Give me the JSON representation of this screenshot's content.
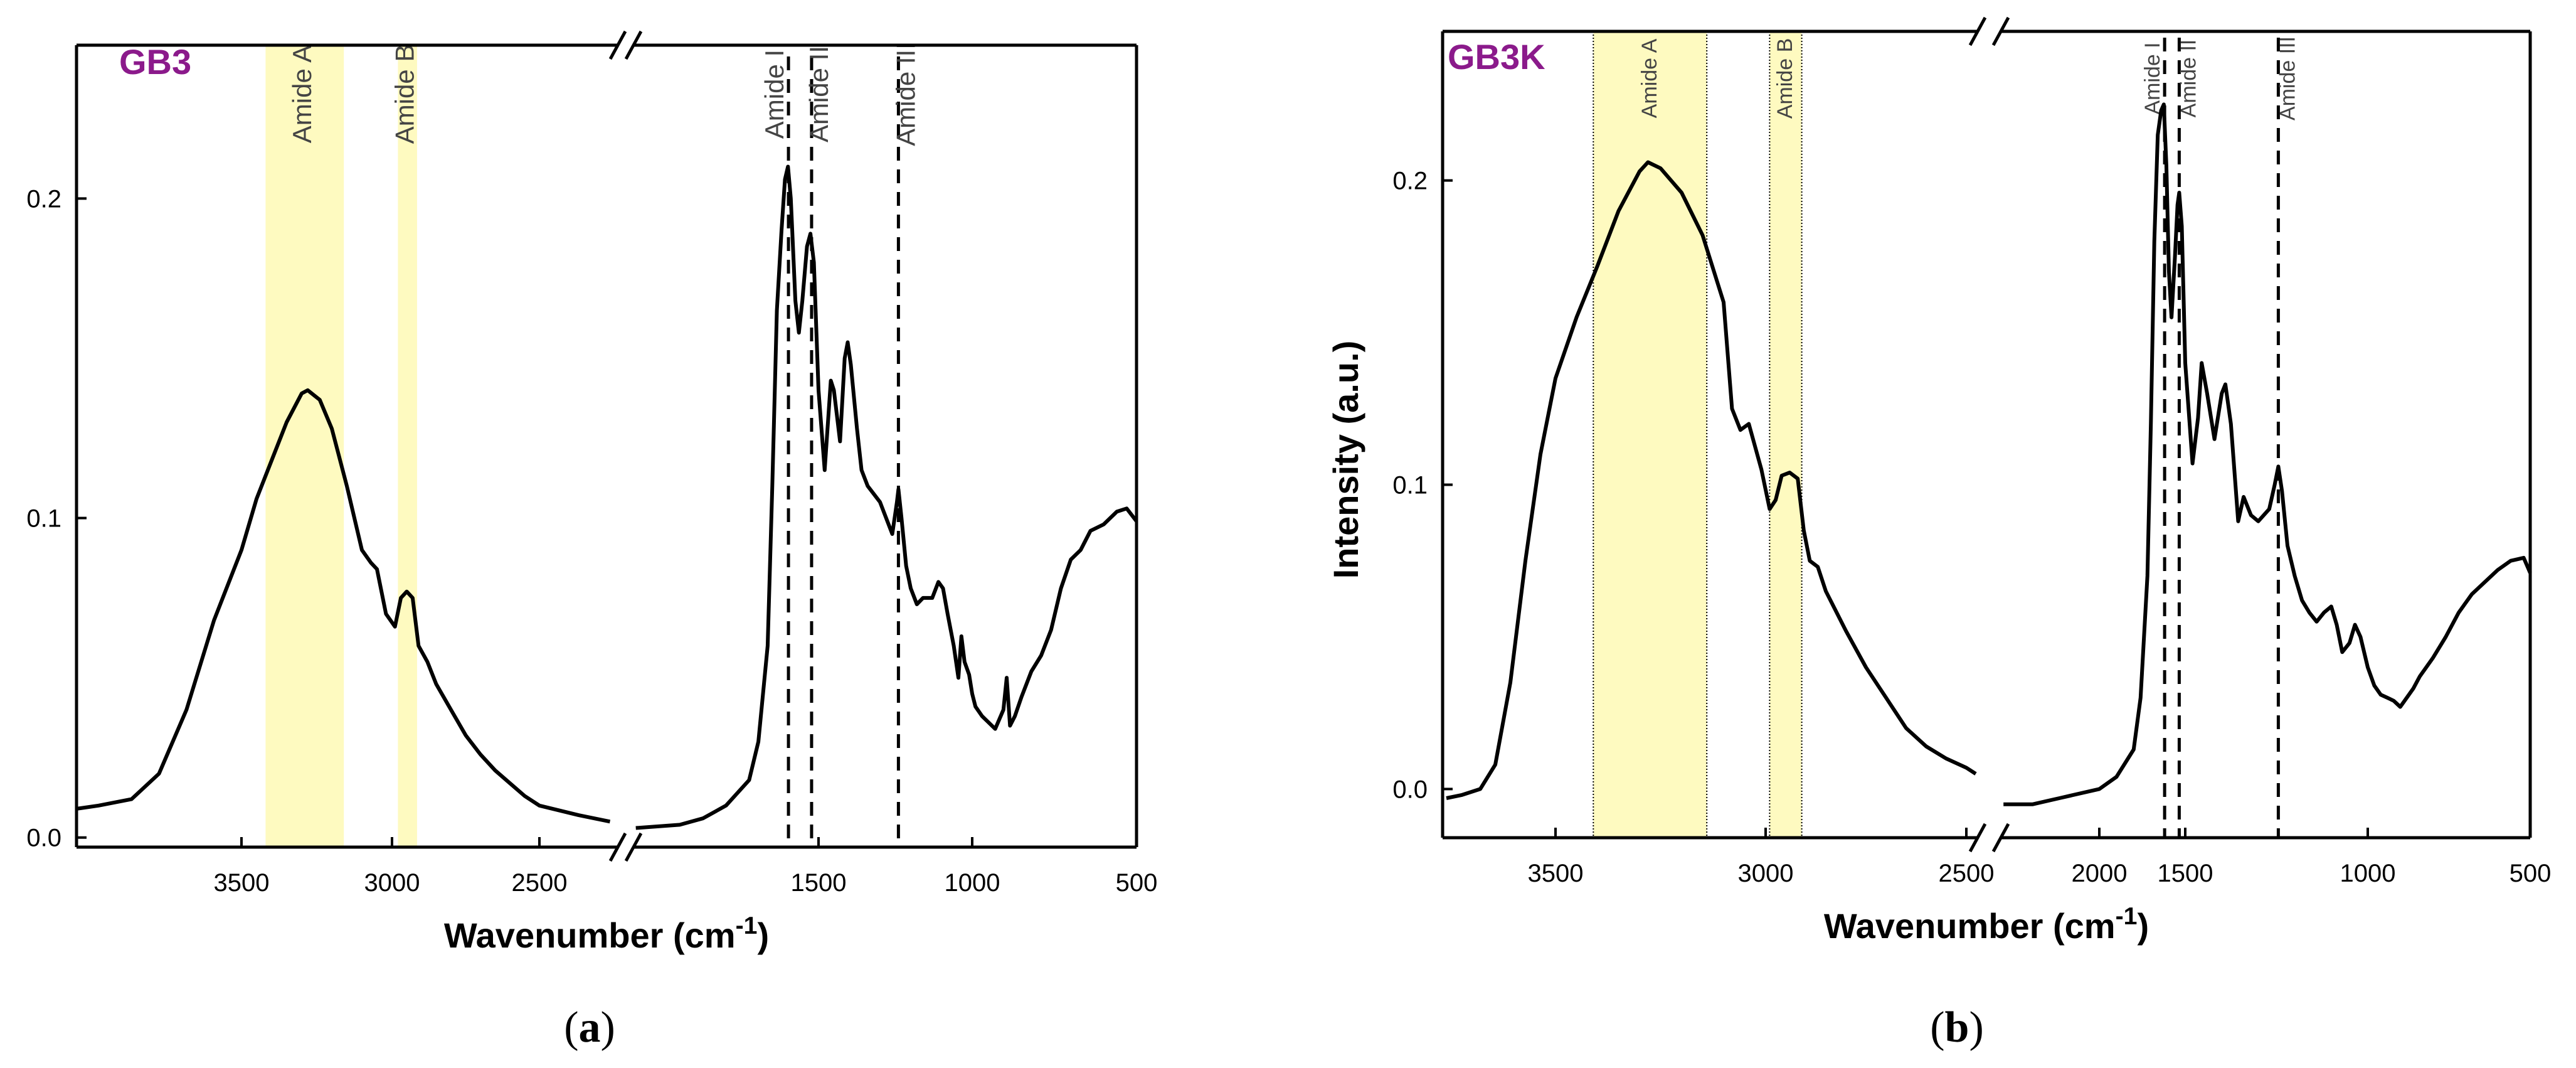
{
  "chart_data": [
    {
      "type": "line",
      "panel_label": "GB3",
      "xlabel": "Wavenumber (cm",
      "xlabel_sup": "-1",
      "xlabel_tail": ")",
      "ylabel": "Intensity (a.u.)",
      "caption_open": "(",
      "caption_letter": "a",
      "caption_close": ")",
      "xlim": [
        3800,
        500
      ],
      "x_break": [
        2400,
        2300
      ],
      "ylim": [
        -0.003,
        0.248
      ],
      "xticks": [
        "3500",
        "3000",
        "2500",
        "1500",
        "1000",
        "500"
      ],
      "yticks": [
        "0.0",
        "0.1",
        "0.2"
      ],
      "bands": [
        {
          "label": "Amide A",
          "from": 3420,
          "to": 3160
        },
        {
          "label": "Amide B",
          "from": 2980,
          "to": 2915
        }
      ],
      "lines": [
        {
          "label": "Amide I",
          "x": 1630
        },
        {
          "label": "Amide II",
          "x": 1530
        },
        {
          "label": "Amide III",
          "x": 1240
        }
      ],
      "series": [
        {
          "segments": [
            [
              [
                3800,
                0.009
              ],
              [
                3760,
                0.01
              ],
              [
                3700,
                0.012
              ],
              [
                3650,
                0.02
              ],
              [
                3600,
                0.04
              ],
              [
                3550,
                0.068
              ],
              [
                3500,
                0.09
              ],
              [
                3450,
                0.106
              ],
              [
                3400,
                0.118
              ],
              [
                3350,
                0.13
              ],
              [
                3300,
                0.139
              ],
              [
                3280,
                0.14
              ],
              [
                3240,
                0.137
              ],
              [
                3200,
                0.128
              ],
              [
                3150,
                0.11
              ],
              [
                3100,
                0.09
              ],
              [
                3070,
                0.086
              ],
              [
                3050,
                0.084
              ],
              [
                3020,
                0.07
              ],
              [
                2990,
                0.066
              ],
              [
                2970,
                0.075
              ],
              [
                2950,
                0.077
              ],
              [
                2930,
                0.075
              ],
              [
                2910,
                0.06
              ],
              [
                2880,
                0.055
              ],
              [
                2850,
                0.048
              ],
              [
                2800,
                0.04
              ],
              [
                2750,
                0.032
              ],
              [
                2700,
                0.026
              ],
              [
                2650,
                0.021
              ],
              [
                2600,
                0.017
              ],
              [
                2550,
                0.013
              ],
              [
                2500,
                0.01
              ],
              [
                2450,
                0.007
              ],
              [
                2410,
                0.005
              ]
            ],
            [
              [
                2290,
                0.003
              ],
              [
                2100,
                0.004
              ],
              [
                2000,
                0.006
              ],
              [
                1900,
                0.01
              ],
              [
                1800,
                0.018
              ],
              [
                1760,
                0.03
              ],
              [
                1720,
                0.06
              ],
              [
                1700,
                0.11
              ],
              [
                1680,
                0.165
              ],
              [
                1660,
                0.19
              ],
              [
                1645,
                0.206
              ],
              [
                1632,
                0.21
              ],
              [
                1620,
                0.2
              ],
              [
                1600,
                0.168
              ],
              [
                1585,
                0.158
              ],
              [
                1570,
                0.168
              ],
              [
                1550,
                0.185
              ],
              [
                1535,
                0.189
              ],
              [
                1520,
                0.18
              ],
              [
                1500,
                0.14
              ],
              [
                1480,
                0.115
              ],
              [
                1460,
                0.143
              ],
              [
                1450,
                0.14
              ],
              [
                1430,
                0.124
              ],
              [
                1415,
                0.15
              ],
              [
                1405,
                0.155
              ],
              [
                1395,
                0.148
              ],
              [
                1375,
                0.128
              ],
              [
                1360,
                0.115
              ],
              [
                1340,
                0.11
              ],
              [
                1300,
                0.105
              ],
              [
                1280,
                0.1
              ],
              [
                1260,
                0.095
              ],
              [
                1245,
                0.105
              ],
              [
                1240,
                0.109
              ],
              [
                1230,
                0.1
              ],
              [
                1215,
                0.085
              ],
              [
                1200,
                0.078
              ],
              [
                1180,
                0.073
              ],
              [
                1160,
                0.075
              ],
              [
                1130,
                0.075
              ],
              [
                1110,
                0.08
              ],
              [
                1095,
                0.078
              ],
              [
                1080,
                0.07
              ],
              [
                1060,
                0.06
              ],
              [
                1045,
                0.05
              ],
              [
                1035,
                0.063
              ],
              [
                1025,
                0.055
              ],
              [
                1010,
                0.051
              ],
              [
                1000,
                0.045
              ],
              [
                990,
                0.041
              ],
              [
                970,
                0.038
              ],
              [
                950,
                0.036
              ],
              [
                930,
                0.034
              ],
              [
                905,
                0.04
              ],
              [
                895,
                0.05
              ],
              [
                885,
                0.035
              ],
              [
                870,
                0.038
              ],
              [
                850,
                0.044
              ],
              [
                820,
                0.052
              ],
              [
                790,
                0.057
              ],
              [
                760,
                0.065
              ],
              [
                730,
                0.078
              ],
              [
                700,
                0.087
              ],
              [
                670,
                0.09
              ],
              [
                640,
                0.096
              ],
              [
                600,
                0.098
              ],
              [
                560,
                0.102
              ],
              [
                530,
                0.103
              ],
              [
                500,
                0.099
              ]
            ]
          ]
        }
      ]
    },
    {
      "type": "line",
      "panel_label": "GB3K",
      "xlabel": "Wavenumber (cm",
      "xlabel_sup": "-1",
      "xlabel_tail": ")",
      "ylabel": "Intensity (a.u.)",
      "caption_open": "(",
      "caption_letter": "b",
      "caption_close": ")",
      "xlim": [
        3800,
        500
      ],
      "x_break": [
        2440,
        2370
      ],
      "ylim": [
        -0.016,
        0.249
      ],
      "xticks": [
        "3500",
        "3000",
        "2500",
        "2000",
        "1500",
        "1000",
        "500"
      ],
      "yticks": [
        "0.0",
        "0.1",
        "0.2"
      ],
      "bands": [
        {
          "label": "Amide A",
          "from": 3410,
          "to": 3140
        },
        {
          "label": "Amide B",
          "from": 2990,
          "to": 2910
        }
      ],
      "lines": [
        {
          "label": "Amide I",
          "x": 1620
        },
        {
          "label": "Amide II",
          "x": 1535
        },
        {
          "label": "Amide III",
          "x": 1245
        }
      ],
      "series": [
        {
          "segments": [
            [
              [
                3790,
                -0.003
              ],
              [
                3750,
                -0.002
              ],
              [
                3700,
                0.0
              ],
              [
                3660,
                0.008
              ],
              [
                3620,
                0.035
              ],
              [
                3580,
                0.075
              ],
              [
                3540,
                0.11
              ],
              [
                3500,
                0.135
              ],
              [
                3450,
                0.155
              ],
              [
                3400,
                0.172
              ],
              [
                3350,
                0.19
              ],
              [
                3300,
                0.203
              ],
              [
                3280,
                0.206
              ],
              [
                3250,
                0.204
              ],
              [
                3200,
                0.196
              ],
              [
                3150,
                0.182
              ],
              [
                3100,
                0.16
              ],
              [
                3080,
                0.125
              ],
              [
                3060,
                0.118
              ],
              [
                3040,
                0.12
              ],
              [
                3010,
                0.105
              ],
              [
                2990,
                0.092
              ],
              [
                2975,
                0.095
              ],
              [
                2960,
                0.103
              ],
              [
                2940,
                0.104
              ],
              [
                2920,
                0.102
              ],
              [
                2905,
                0.085
              ],
              [
                2890,
                0.075
              ],
              [
                2870,
                0.073
              ],
              [
                2850,
                0.065
              ],
              [
                2800,
                0.052
              ],
              [
                2750,
                0.04
              ],
              [
                2700,
                0.03
              ],
              [
                2650,
                0.02
              ],
              [
                2600,
                0.014
              ],
              [
                2550,
                0.01
              ],
              [
                2500,
                0.007
              ],
              [
                2450,
                0.005
              ]
            ],
            [
              [
                2360,
                -0.005
              ],
              [
                2250,
                -0.005
              ],
              [
                2150,
                -0.003
              ],
              [
                2000,
                0.0
              ],
              [
                1900,
                0.004
              ],
              [
                1800,
                0.013
              ],
              [
                1760,
                0.03
              ],
              [
                1720,
                0.07
              ],
              [
                1700,
                0.12
              ],
              [
                1680,
                0.18
              ],
              [
                1660,
                0.215
              ],
              [
                1640,
                0.223
              ],
              [
                1625,
                0.225
              ],
              [
                1610,
                0.205
              ],
              [
                1595,
                0.17
              ],
              [
                1580,
                0.155
              ],
              [
                1560,
                0.175
              ],
              [
                1545,
                0.192
              ],
              [
                1535,
                0.196
              ],
              [
                1520,
                0.185
              ],
              [
                1500,
                0.14
              ],
              [
                1480,
                0.107
              ],
              [
                1465,
                0.122
              ],
              [
                1455,
                0.14
              ],
              [
                1440,
                0.13
              ],
              [
                1420,
                0.115
              ],
              [
                1400,
                0.13
              ],
              [
                1390,
                0.133
              ],
              [
                1375,
                0.12
              ],
              [
                1355,
                0.088
              ],
              [
                1340,
                0.096
              ],
              [
                1320,
                0.09
              ],
              [
                1300,
                0.088
              ],
              [
                1270,
                0.092
              ],
              [
                1255,
                0.1
              ],
              [
                1245,
                0.106
              ],
              [
                1235,
                0.098
              ],
              [
                1220,
                0.08
              ],
              [
                1200,
                0.07
              ],
              [
                1180,
                0.062
              ],
              [
                1160,
                0.058
              ],
              [
                1140,
                0.055
              ],
              [
                1120,
                0.058
              ],
              [
                1100,
                0.06
              ],
              [
                1085,
                0.054
              ],
              [
                1070,
                0.045
              ],
              [
                1050,
                0.048
              ],
              [
                1035,
                0.054
              ],
              [
                1020,
                0.05
              ],
              [
                1000,
                0.04
              ],
              [
                980,
                0.034
              ],
              [
                960,
                0.031
              ],
              [
                940,
                0.03
              ],
              [
                920,
                0.029
              ],
              [
                900,
                0.027
              ],
              [
                880,
                0.03
              ],
              [
                860,
                0.033
              ],
              [
                840,
                0.037
              ],
              [
                800,
                0.043
              ],
              [
                760,
                0.05
              ],
              [
                720,
                0.058
              ],
              [
                680,
                0.064
              ],
              [
                640,
                0.068
              ],
              [
                600,
                0.072
              ],
              [
                560,
                0.075
              ],
              [
                520,
                0.076
              ],
              [
                500,
                0.071
              ]
            ]
          ]
        }
      ]
    }
  ],
  "colors": {
    "band_fill": "#fefac0",
    "panel_label": "#8b1a8b",
    "line": "#000000"
  }
}
